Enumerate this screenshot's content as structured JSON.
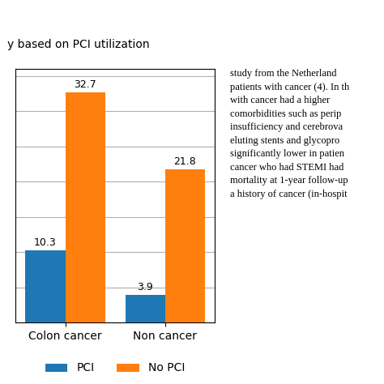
{
  "chart_data": {
    "type": "bar",
    "subtitle": "y based on PCI utilization",
    "categories": [
      "Colon cancer",
      "Non cancer"
    ],
    "series": [
      {
        "name": "PCI",
        "values": [
          10.3,
          3.9
        ]
      },
      {
        "name": "No PCI",
        "values": [
          32.7,
          21.8
        ]
      }
    ],
    "ylim": [
      0,
      36
    ],
    "yticks": [
      5,
      10,
      15,
      20,
      25,
      30,
      35
    ],
    "grid": true,
    "tick_labels": "x",
    "data_labels": true,
    "legend": "lower center",
    "annotations": [
      "study from the Netherland\npatients with cancer (4). In th\nwith cancer had a higher\ncomorbidities such as perip\ninsufficiency and cerebrova\neluting stents and glycopro\nsignificantly lower in patien\ncancer who had STEMI had\nmortality at 1-year follow-up\na history of cancer (in-hospit"
    ]
  }
}
